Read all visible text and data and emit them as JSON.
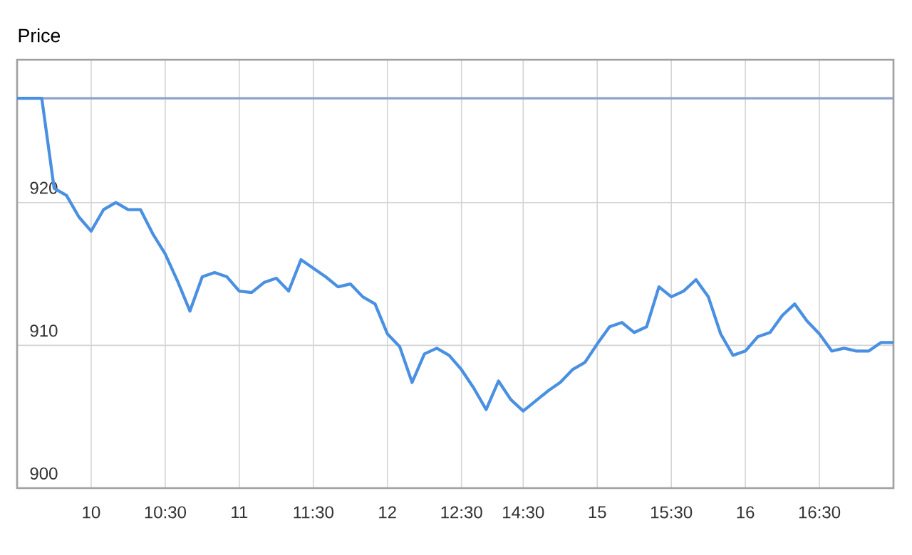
{
  "chart_data": {
    "type": "line",
    "ylabel": "Price",
    "categories": [
      null,
      null,
      null,
      null,
      null,
      null,
      "10",
      null,
      null,
      null,
      null,
      null,
      "10:30",
      null,
      null,
      null,
      null,
      null,
      "11",
      null,
      null,
      null,
      null,
      null,
      "11:30",
      null,
      null,
      null,
      null,
      null,
      "12",
      null,
      null,
      null,
      null,
      null,
      "12:30",
      null,
      null,
      null,
      null,
      "14:30",
      null,
      null,
      null,
      null,
      null,
      "15",
      null,
      null,
      null,
      null,
      null,
      "15:30",
      null,
      null,
      null,
      null,
      null,
      "16",
      null,
      null,
      null,
      null,
      null,
      "16:30",
      null,
      null,
      null,
      null,
      null,
      null
    ],
    "series": [
      {
        "color": "#4a90e2",
        "values": [
          927.3,
          927.3,
          927.3,
          921,
          920.5,
          919,
          918,
          919.5,
          920,
          919.5,
          919.5,
          917.8,
          916.4,
          914.5,
          912.4,
          914.8,
          915.1,
          914.8,
          913.8,
          913.7,
          914.4,
          914.7,
          913.8,
          916,
          915.4,
          914.8,
          914.1,
          914.3,
          913.4,
          912.9,
          910.8,
          909.9,
          907.4,
          909.4,
          909.8,
          909.3,
          908.3,
          907,
          905.5,
          907.5,
          906.2,
          905.4,
          906.1,
          906.8,
          907.4,
          908.3,
          908.8,
          910.1,
          911.3,
          911.6,
          910.9,
          911.3,
          914.1,
          913.4,
          913.8,
          914.6,
          913.4,
          910.8,
          909.3,
          909.6,
          910.6,
          910.9,
          912.1,
          912.9,
          911.7,
          910.8,
          909.6,
          909.8,
          909.6,
          909.6,
          910.2,
          910.2
        ]
      }
    ],
    "ylim": [
      900,
      930
    ],
    "yticks": [
      900,
      910,
      920
    ],
    "ref_lines": [
      {
        "axis": "y",
        "value": 927.3,
        "color": "#8fa3c8"
      }
    ],
    "grid": true
  }
}
